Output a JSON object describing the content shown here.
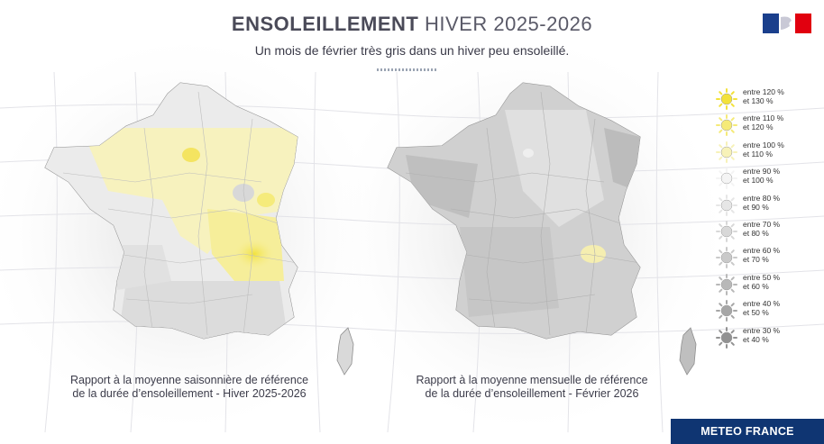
{
  "header": {
    "title_bold": "ENSOLEILLEMENT",
    "title_light": "HIVER 2025-2026",
    "subtitle": "Un mois de février très gris dans un hiver peu ensoleillé."
  },
  "maps": [
    {
      "caption_line1": "Rapport à la moyenne saisonnière de référence",
      "caption_line2": "de la durée d’ensoleillement - Hiver 2025-2026"
    },
    {
      "caption_line1": "Rapport à la moyenne mensuelle de référence",
      "caption_line2": "de la durée d’ensoleillement - Février 2026"
    }
  ],
  "legend": [
    {
      "line1": "entre 120 %",
      "line2": "et 130 %",
      "color": "#f3e23a"
    },
    {
      "line1": "entre 110 %",
      "line2": "et 120 %",
      "color": "#f5ea78"
    },
    {
      "line1": "entre 100 %",
      "line2": "et 110 %",
      "color": "#f7f2b8"
    },
    {
      "line1": "entre 90 %",
      "line2": "et 100 %",
      "color": "#f4f4f4"
    },
    {
      "line1": "entre 80 %",
      "line2": "et 90 %",
      "color": "#e6e6e6"
    },
    {
      "line1": "entre 70 %",
      "line2": "et 80 %",
      "color": "#d8d8d8"
    },
    {
      "line1": "entre 60 %",
      "line2": "et 70 %",
      "color": "#c9c9c9"
    },
    {
      "line1": "entre 50 %",
      "line2": "et 60 %",
      "color": "#b8b8b8"
    },
    {
      "line1": "entre 40 %",
      "line2": "et 50 %",
      "color": "#a6a6a6"
    },
    {
      "line1": "entre 30 %",
      "line2": "et 40 %",
      "color": "#929292"
    }
  ],
  "branding": {
    "logo_text": "METEO FRANCE",
    "flag_colors": [
      "#1a3f8c",
      "#ffffff",
      "#e1000f"
    ]
  }
}
